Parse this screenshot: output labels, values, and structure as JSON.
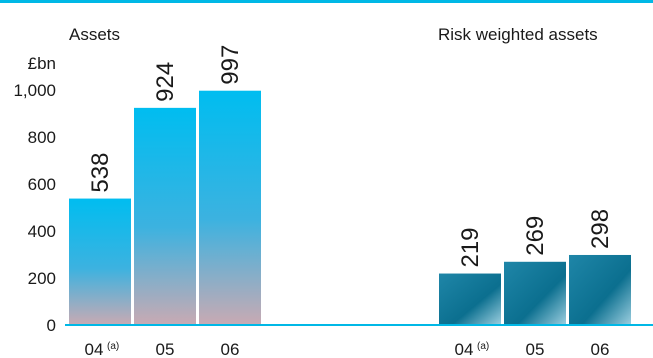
{
  "chart_data": {
    "type": "bar",
    "unit_label": "£bn",
    "ylim": [
      0,
      1000
    ],
    "yticks": [
      0,
      200,
      400,
      600,
      800,
      1000
    ],
    "ytick_labels": [
      "0",
      "200",
      "400",
      "600",
      "800",
      "1,000"
    ],
    "axis_color": "#00b8e6",
    "panels": [
      {
        "title": "Assets",
        "categories": [
          "04",
          "05",
          "06"
        ],
        "category_superscripts": [
          "(a)",
          "",
          ""
        ],
        "values": [
          538,
          924,
          997
        ],
        "value_labels": [
          "538",
          "924",
          "997"
        ],
        "colors": {
          "top": "#00bdf0",
          "mid": "#3cb2e0",
          "bottom": "#c9aab3"
        }
      },
      {
        "title": "Risk weighted assets",
        "categories": [
          "04",
          "05",
          "06"
        ],
        "category_superscripts": [
          "(a)",
          "",
          ""
        ],
        "values": [
          219,
          269,
          298
        ],
        "value_labels": [
          "219",
          "269",
          "298"
        ],
        "colors": {
          "top": "#1f86a8",
          "mid": "#0b6f8f",
          "bottom": "#9ccfe0"
        }
      }
    ]
  }
}
